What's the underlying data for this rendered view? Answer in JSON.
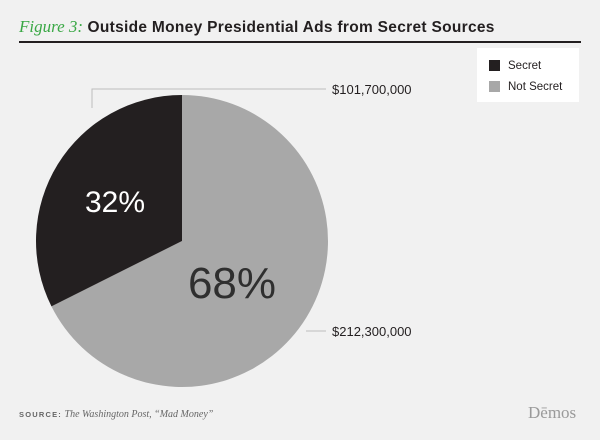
{
  "figure": {
    "prefix": "Figure 3:",
    "title": "Outside Money Presidential Ads from Secret Sources"
  },
  "chart_data": {
    "type": "pie",
    "slices": [
      {
        "name": "Secret",
        "value": 101700000,
        "percent_label": "32%",
        "amount_label": "$101,700,000",
        "color": "#231f20"
      },
      {
        "name": "Not Secret",
        "value": 212300000,
        "percent_label": "68%",
        "amount_label": "$212,300,000",
        "color": "#a8a8a8"
      }
    ],
    "legend": {
      "position": "top-right"
    }
  },
  "source": {
    "key": "SOURCE:",
    "text": "The Washington Post, “Mad Money”"
  },
  "brand": "Dēmos"
}
